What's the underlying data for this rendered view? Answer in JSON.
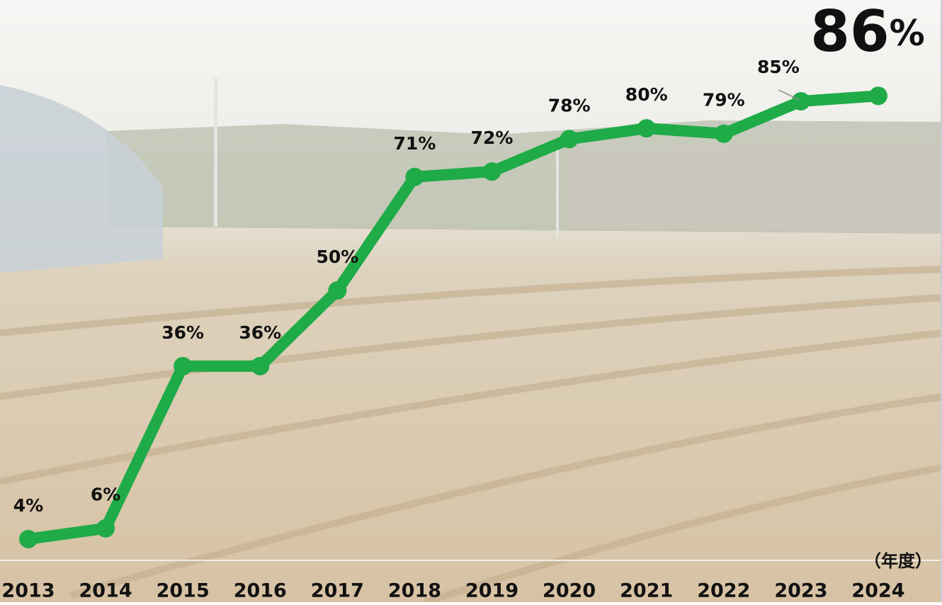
{
  "chart_data": {
    "type": "line",
    "categories": [
      "2013",
      "2014",
      "2015",
      "2016",
      "2017",
      "2018",
      "2019",
      "2020",
      "2021",
      "2022",
      "2023",
      "2024"
    ],
    "x_unit_label": "（年度）",
    "series": [
      {
        "color": "#1fab47",
        "values": [
          4,
          6,
          36,
          36,
          50,
          71,
          72,
          78,
          80,
          79,
          85,
          86
        ],
        "value_labels": [
          "4%",
          "6%",
          "36%",
          "36%",
          "50%",
          "71%",
          "72%",
          "78%",
          "80%",
          "79%",
          "85%",
          "86%"
        ]
      }
    ],
    "ylim": [
      0,
      100
    ]
  }
}
